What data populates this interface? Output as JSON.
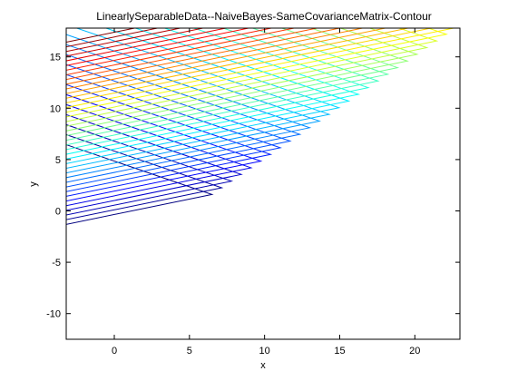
{
  "chart_data": {
    "type": "contour",
    "title": "LinearlySeparableData--NaiveBayes-SameCovarianceMatrix-Contour",
    "xlabel": "x",
    "ylabel": "y",
    "xlim": [
      -3.2,
      23
    ],
    "ylim": [
      -12.5,
      17.8
    ],
    "xticks": [
      0,
      5,
      10,
      15,
      20
    ],
    "yticks": [
      -10,
      -5,
      0,
      5,
      10,
      15
    ],
    "grid": false,
    "colormap": "jet",
    "contour_levels": 40,
    "contour_vertex_offsets_from_first_vertex_per_level": [
      0.65,
      0.65
    ],
    "contour_vertex_first_level": [
      6.5,
      1.6
    ],
    "contour_upper_arm_direction": [
      -1,
      0.5
    ],
    "contour_lower_arm_direction": [
      -1,
      -0.3
    ],
    "box_color": "#000000",
    "background": "#ffffff"
  }
}
